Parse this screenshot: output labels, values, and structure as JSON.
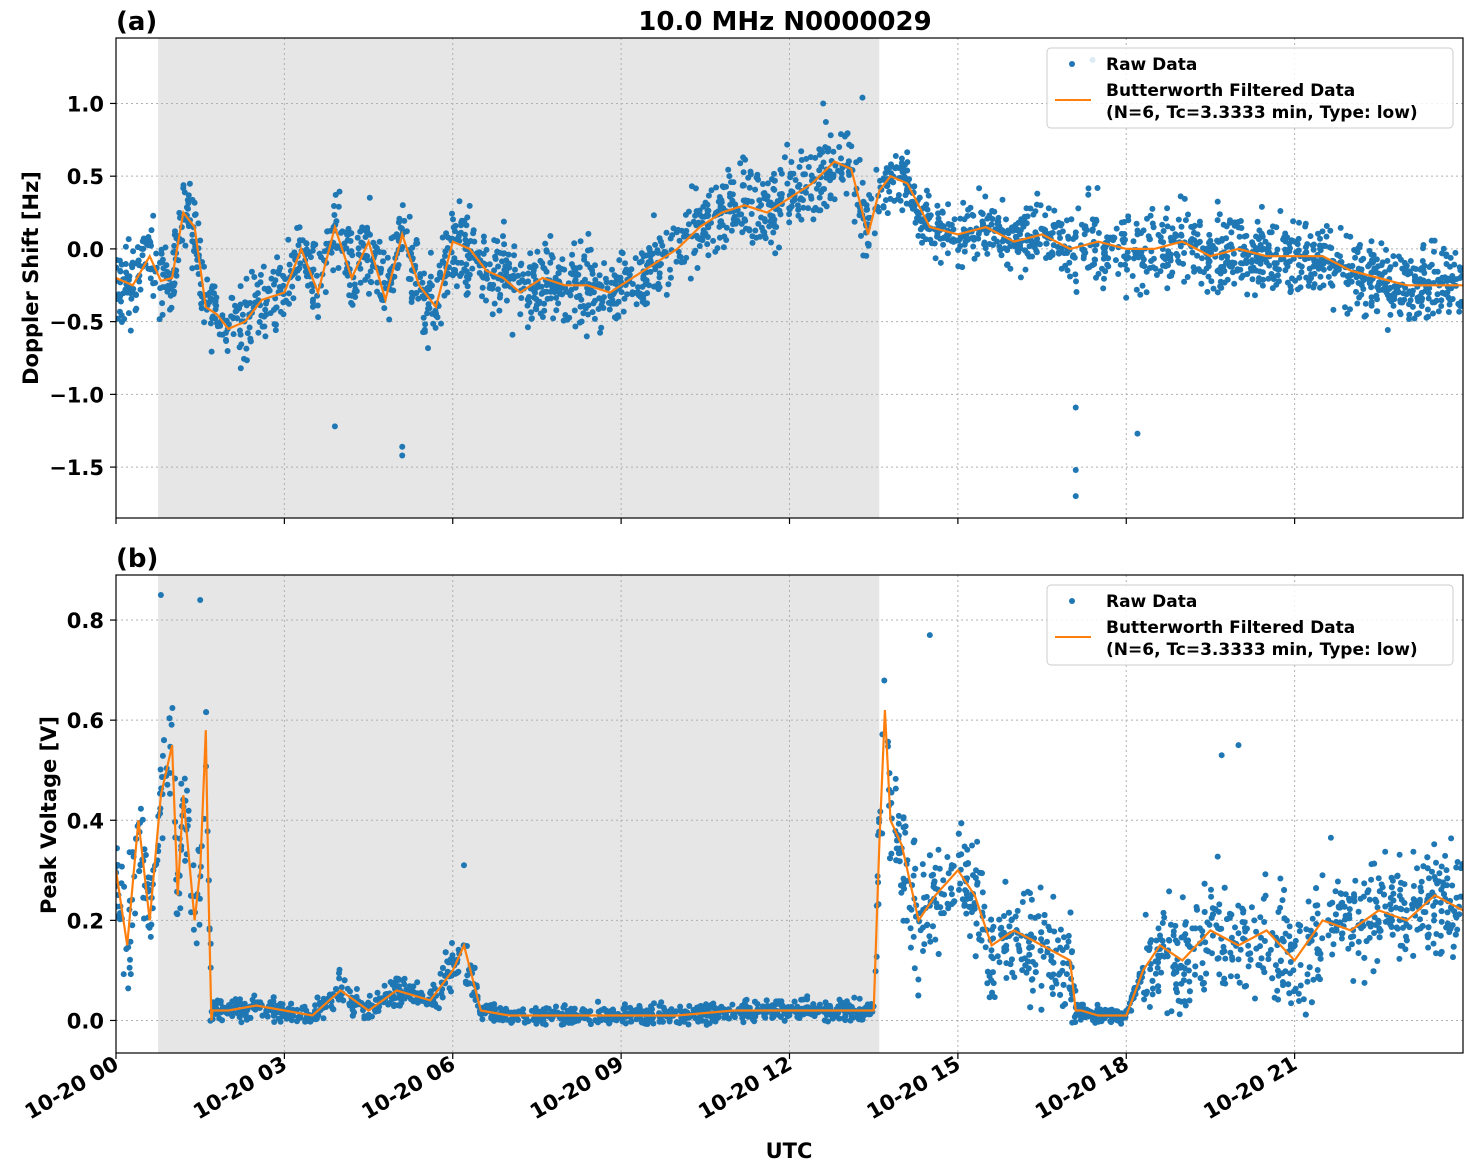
{
  "figure": {
    "title": "10.0 MHz N0000029",
    "xlabel": "UTC",
    "x_ticks": [
      "10-20 00",
      "10-20 03",
      "10-20 06",
      "10-20 09",
      "10-20 12",
      "10-20 15",
      "10-20 18",
      "10-20 21"
    ]
  },
  "legend": {
    "raw": "Raw Data",
    "filtered_line1": "Butterworth Filtered Data",
    "filtered_line2": "(N=6, Tc=3.3333 min, Type: low)"
  },
  "colors": {
    "raw": "#1f77b4",
    "filtered": "#ff7f0e",
    "shade": "#e6e6e6",
    "grid": "#b0b0b0"
  },
  "chart_data": [
    {
      "type": "scatter",
      "panel_label": "(a)",
      "ylabel": "Doppler Shift [Hz]",
      "x_unit": "hours UTC, 2023-10-20 (x-axis 00:00 to 24:00)",
      "xlim": [
        0,
        24
      ],
      "ylim": [
        -1.85,
        1.45
      ],
      "y_ticks": [
        1.0,
        0.5,
        0.0,
        -0.5,
        -1.0,
        -1.5
      ],
      "y_tick_labels": [
        "1.0",
        "0.5",
        "0.0",
        "−0.5",
        "−1.0",
        "−1.5"
      ],
      "shaded_x_range": [
        0.75,
        13.6
      ],
      "grid": true,
      "legend_position": "top-right",
      "series": [
        {
          "name": "Butterworth Filtered Data\n(N=6, Tc=3.3333 min, Type: low)",
          "kind": "line",
          "x": [
            0,
            0.3,
            0.6,
            0.8,
            1.0,
            1.2,
            1.4,
            1.6,
            1.8,
            2.0,
            2.3,
            2.6,
            3.0,
            3.3,
            3.6,
            3.9,
            4.2,
            4.5,
            4.8,
            5.1,
            5.4,
            5.7,
            6.0,
            6.3,
            6.6,
            6.9,
            7.2,
            7.6,
            8.0,
            8.4,
            8.8,
            9.2,
            9.6,
            10.0,
            10.4,
            10.8,
            11.2,
            11.6,
            12.0,
            12.4,
            12.8,
            13.1,
            13.4,
            13.6,
            13.8,
            14.1,
            14.5,
            15.0,
            15.5,
            16.0,
            16.5,
            17.0,
            17.5,
            18.0,
            18.5,
            19.0,
            19.5,
            20.0,
            20.5,
            21.0,
            21.5,
            22.0,
            22.5,
            23.0,
            23.5,
            24.0
          ],
          "y": [
            -0.2,
            -0.25,
            -0.05,
            -0.22,
            -0.2,
            0.25,
            0.15,
            -0.4,
            -0.45,
            -0.55,
            -0.5,
            -0.35,
            -0.3,
            0.0,
            -0.3,
            0.15,
            -0.2,
            0.05,
            -0.35,
            0.1,
            -0.25,
            -0.4,
            0.05,
            0.0,
            -0.15,
            -0.2,
            -0.3,
            -0.2,
            -0.25,
            -0.25,
            -0.3,
            -0.2,
            -0.1,
            0.0,
            0.15,
            0.25,
            0.3,
            0.25,
            0.35,
            0.45,
            0.6,
            0.55,
            0.1,
            0.4,
            0.5,
            0.45,
            0.15,
            0.1,
            0.15,
            0.05,
            0.1,
            0.0,
            0.05,
            0.0,
            0.0,
            0.05,
            -0.05,
            0.0,
            -0.05,
            -0.05,
            -0.05,
            -0.15,
            -0.2,
            -0.25,
            -0.25,
            -0.25
          ]
        },
        {
          "name": "Raw Data",
          "kind": "points",
          "spread_notes": "dense band around filtered line, typical half-width 0.2 Hz",
          "outliers": [
            [
              3.9,
              -1.22
            ],
            [
              5.1,
              -1.42
            ],
            [
              5.1,
              -1.36
            ],
            [
              17.1,
              -1.52
            ],
            [
              17.1,
              -1.7
            ],
            [
              17.1,
              -1.09
            ],
            [
              18.2,
              -1.27
            ],
            [
              13.3,
              1.04
            ],
            [
              12.6,
              1.0
            ],
            [
              17.4,
              1.3
            ]
          ]
        }
      ]
    },
    {
      "type": "scatter",
      "panel_label": "(b)",
      "ylabel": "Peak Voltage [V]",
      "x_unit": "hours UTC, 2023-10-20 (x-axis 00:00 to 24:00)",
      "xlim": [
        0,
        24
      ],
      "ylim": [
        -0.065,
        0.89
      ],
      "y_ticks": [
        0.8,
        0.6,
        0.4,
        0.2,
        0.0
      ],
      "y_tick_labels": [
        "0.8",
        "0.6",
        "0.4",
        "0.2",
        "0.0"
      ],
      "shaded_x_range": [
        0.75,
        13.6
      ],
      "grid": true,
      "legend_position": "top-right",
      "series": [
        {
          "name": "Butterworth Filtered Data\n(N=6, Tc=3.3333 min, Type: low)",
          "kind": "line",
          "x": [
            0,
            0.2,
            0.4,
            0.6,
            0.8,
            1.0,
            1.1,
            1.2,
            1.4,
            1.5,
            1.6,
            1.65,
            1.7,
            1.72,
            2.0,
            2.5,
            3.0,
            3.5,
            4.0,
            4.5,
            5.0,
            5.3,
            5.6,
            6.0,
            6.2,
            6.5,
            7.0,
            8.0,
            9.0,
            10.0,
            11.0,
            12.0,
            13.0,
            13.5,
            13.6,
            13.7,
            13.8,
            14.0,
            14.3,
            14.6,
            15.0,
            15.3,
            15.6,
            16.0,
            16.5,
            17.0,
            17.1,
            17.2,
            17.5,
            18.0,
            18.3,
            18.6,
            19.0,
            19.5,
            20.0,
            20.5,
            21.0,
            21.5,
            22.0,
            22.5,
            23.0,
            23.5,
            24.0
          ],
          "y": [
            0.3,
            0.15,
            0.4,
            0.2,
            0.45,
            0.55,
            0.25,
            0.45,
            0.2,
            0.3,
            0.58,
            0.25,
            0.0,
            0.02,
            0.02,
            0.03,
            0.02,
            0.01,
            0.06,
            0.02,
            0.06,
            0.05,
            0.04,
            0.1,
            0.15,
            0.02,
            0.01,
            0.01,
            0.01,
            0.01,
            0.02,
            0.02,
            0.02,
            0.02,
            0.35,
            0.62,
            0.4,
            0.35,
            0.2,
            0.25,
            0.3,
            0.25,
            0.15,
            0.18,
            0.15,
            0.12,
            0.02,
            0.02,
            0.01,
            0.01,
            0.1,
            0.15,
            0.12,
            0.18,
            0.15,
            0.18,
            0.12,
            0.2,
            0.18,
            0.22,
            0.2,
            0.25,
            0.22
          ]
        },
        {
          "name": "Raw Data",
          "kind": "points",
          "spread_notes": "dense band; large spread during daytime (0.2-0.8 V), near zero at night",
          "outliers": [
            [
              0.8,
              0.85
            ],
            [
              1.5,
              0.84
            ],
            [
              6.2,
              0.31
            ],
            [
              14.5,
              0.77
            ],
            [
              20.0,
              0.55
            ],
            [
              19.7,
              0.53
            ]
          ]
        }
      ]
    }
  ]
}
